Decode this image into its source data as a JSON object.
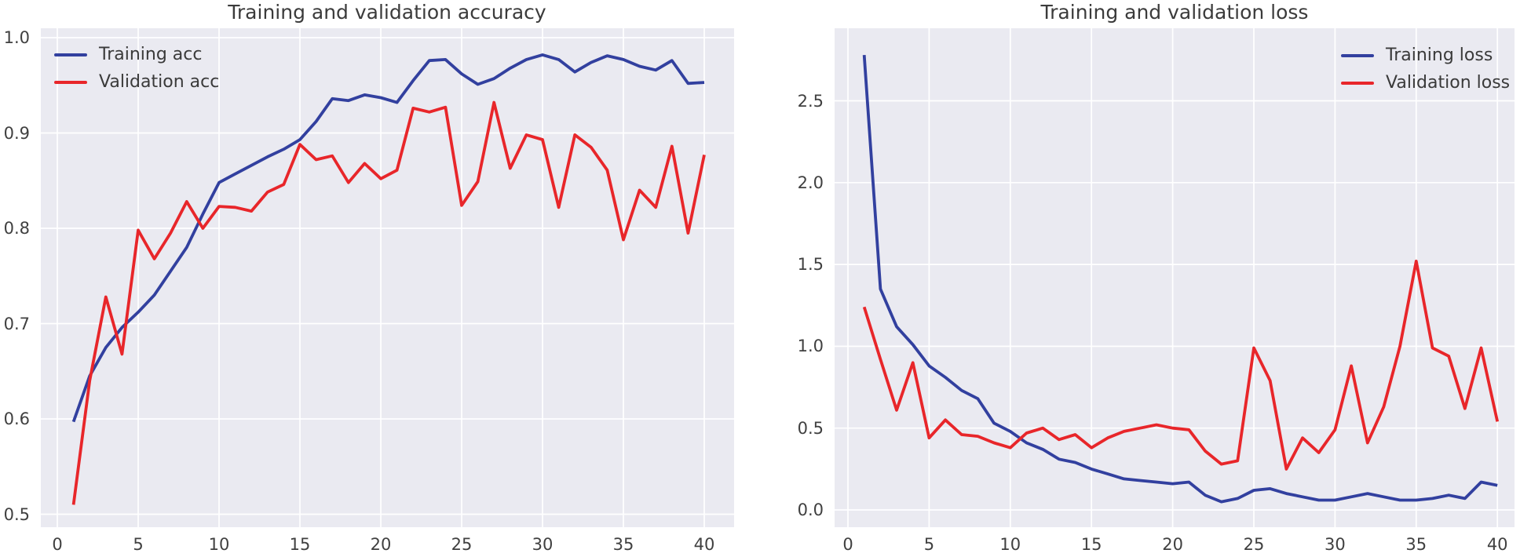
{
  "style": {
    "plot_bg": "#eaeaf1",
    "grid_color": "#ffffff",
    "blue": "#32409f",
    "red": "#e8262a",
    "text_color": "#404040"
  },
  "chart_data": [
    {
      "type": "line",
      "title": "Training and validation accuracy",
      "xlabel": "",
      "ylabel": "",
      "xlim": [
        -1,
        42
      ],
      "ylim": [
        0.49,
        1.01
      ],
      "grid": true,
      "legend_position": "upper left",
      "x_ticks": [
        0,
        5,
        10,
        15,
        20,
        25,
        30,
        35,
        40
      ],
      "y_ticks": [
        1.0,
        0.9,
        0.8,
        0.7,
        0.6,
        0.5
      ],
      "y_tick_labels": [
        "1.0",
        "0.9",
        "0.8",
        "0.7",
        "0.6",
        "0.5"
      ],
      "x": [
        1,
        2,
        3,
        4,
        5,
        6,
        7,
        8,
        9,
        10,
        11,
        12,
        13,
        14,
        15,
        16,
        17,
        18,
        19,
        20,
        21,
        22,
        23,
        24,
        25,
        26,
        27,
        28,
        29,
        30,
        31,
        32,
        33,
        34,
        35,
        36,
        37,
        38,
        39,
        40
      ],
      "series": [
        {
          "name": "Training acc",
          "color": "#32409f",
          "values": [
            0.597,
            0.645,
            0.675,
            0.696,
            0.712,
            0.73,
            0.755,
            0.78,
            0.815,
            0.848,
            0.857,
            0.866,
            0.875,
            0.883,
            0.893,
            0.912,
            0.936,
            0.934,
            0.94,
            0.937,
            0.932,
            0.955,
            0.976,
            0.977,
            0.962,
            0.951,
            0.957,
            0.968,
            0.977,
            0.982,
            0.977,
            0.964,
            0.974,
            0.981,
            0.977,
            0.97,
            0.966,
            0.976,
            0.952,
            0.953
          ]
        },
        {
          "name": "Validation acc",
          "color": "#e8262a",
          "values": [
            0.51,
            0.64,
            0.728,
            0.668,
            0.798,
            0.768,
            0.795,
            0.828,
            0.8,
            0.823,
            0.822,
            0.818,
            0.838,
            0.846,
            0.888,
            0.872,
            0.876,
            0.848,
            0.868,
            0.852,
            0.861,
            0.926,
            0.922,
            0.927,
            0.824,
            0.849,
            0.932,
            0.863,
            0.898,
            0.893,
            0.822,
            0.898,
            0.885,
            0.861,
            0.788,
            0.84,
            0.822,
            0.886,
            0.795,
            0.877
          ]
        }
      ]
    },
    {
      "type": "line",
      "title": "Training and validation loss",
      "xlabel": "",
      "ylabel": "",
      "xlim": [
        -1,
        42
      ],
      "ylim": [
        -0.1,
        2.97
      ],
      "grid": true,
      "legend_position": "upper right",
      "x_ticks": [
        0,
        5,
        10,
        15,
        20,
        25,
        30,
        35,
        40
      ],
      "y_ticks": [
        0.0,
        0.5,
        1.0,
        1.5,
        2.0,
        2.5
      ],
      "y_tick_labels": [
        "0.0",
        "0.5",
        "1.0",
        "1.5",
        "2.0",
        "2.5"
      ],
      "x": [
        1,
        2,
        3,
        4,
        5,
        6,
        7,
        8,
        9,
        10,
        11,
        12,
        13,
        14,
        15,
        16,
        17,
        18,
        19,
        20,
        21,
        22,
        23,
        24,
        25,
        26,
        27,
        28,
        29,
        30,
        31,
        32,
        33,
        34,
        35,
        36,
        37,
        38,
        39,
        40
      ],
      "series": [
        {
          "name": "Training loss",
          "color": "#32409f",
          "values": [
            2.78,
            1.35,
            1.12,
            1.01,
            0.88,
            0.81,
            0.73,
            0.68,
            0.53,
            0.48,
            0.41,
            0.37,
            0.31,
            0.29,
            0.25,
            0.22,
            0.19,
            0.18,
            0.17,
            0.16,
            0.17,
            0.09,
            0.05,
            0.07,
            0.12,
            0.13,
            0.1,
            0.08,
            0.06,
            0.06,
            0.08,
            0.1,
            0.08,
            0.06,
            0.06,
            0.07,
            0.09,
            0.07,
            0.17,
            0.15
          ]
        },
        {
          "name": "Validation loss",
          "color": "#e8262a",
          "values": [
            1.24,
            0.92,
            0.61,
            0.9,
            0.44,
            0.55,
            0.46,
            0.45,
            0.41,
            0.38,
            0.47,
            0.5,
            0.43,
            0.46,
            0.38,
            0.44,
            0.48,
            0.5,
            0.52,
            0.5,
            0.49,
            0.36,
            0.28,
            0.3,
            0.99,
            0.79,
            0.25,
            0.44,
            0.35,
            0.49,
            0.88,
            0.41,
            0.63,
            1.0,
            1.52,
            0.99,
            0.94,
            0.62,
            0.99,
            0.54
          ]
        }
      ]
    }
  ]
}
